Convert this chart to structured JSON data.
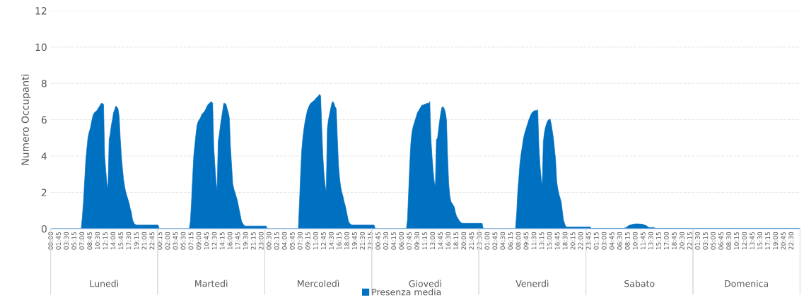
{
  "chart_data": {
    "type": "area",
    "ylabel": "Numero Occupanti",
    "legend": "bottom",
    "grid": "y",
    "ylim": [
      0,
      12
    ],
    "yticks": [
      0,
      2,
      4,
      6,
      8,
      10,
      12
    ],
    "annotations": [
      "Lunedì",
      "Martedì",
      "Mercoledì",
      "Giovedì",
      "Venerdì",
      "Sabato",
      "Domenica"
    ],
    "categories": [
      "00:00",
      null,
      null,
      null,
      null,
      null,
      null,
      "01:45",
      null,
      null,
      null,
      null,
      null,
      null,
      "03:30",
      null,
      null,
      null,
      null,
      null,
      null,
      "05:15",
      null,
      null,
      null,
      null,
      null,
      null,
      "07:00",
      null,
      null,
      null,
      null,
      null,
      null,
      "08:45",
      null,
      null,
      null,
      null,
      null,
      null,
      "10:30",
      null,
      null,
      null,
      null,
      null,
      null,
      "12:15",
      null,
      null,
      null,
      null,
      null,
      null,
      "14:00",
      null,
      null,
      null,
      null,
      null,
      null,
      "15:45",
      null,
      null,
      null,
      null,
      null,
      null,
      "17:30",
      null,
      null,
      null,
      null,
      null,
      null,
      "19:15",
      null,
      null,
      null,
      null,
      null,
      null,
      "21:00",
      null,
      null,
      null,
      null,
      null,
      null,
      "22:45",
      null,
      null,
      null,
      null,
      null,
      null,
      "00:15",
      null,
      null,
      null,
      null,
      null,
      null,
      "02:00",
      null,
      null,
      null,
      null,
      null,
      null,
      "03:45",
      null,
      null,
      null,
      null,
      null,
      null,
      "05:30",
      null,
      null,
      null,
      null,
      null,
      null,
      "07:15",
      null,
      null,
      null,
      null,
      null,
      null,
      "09:00",
      null,
      null,
      null,
      null,
      null,
      null,
      "10:45",
      null,
      null,
      null,
      null,
      null,
      null,
      "12:30",
      null,
      null,
      null,
      null,
      null,
      null,
      "14:15",
      null,
      null,
      null,
      null,
      null,
      null,
      "16:00",
      null,
      null,
      null,
      null,
      null,
      null,
      "17:45",
      null,
      null,
      null,
      null,
      null,
      null,
      "19:30",
      null,
      null,
      null,
      null,
      null,
      null,
      "21:15",
      null,
      null,
      null,
      null,
      null,
      null,
      "23:00",
      null,
      null,
      null,
      null,
      null,
      null,
      "00:30",
      null,
      null,
      null,
      null,
      null,
      null,
      "02:15",
      null,
      null,
      null,
      null,
      null,
      null,
      "04:00",
      null,
      null,
      null,
      null,
      null,
      null,
      "05:45",
      null,
      null,
      null,
      null,
      null,
      null,
      "07:30",
      null,
      null,
      null,
      null,
      null,
      null,
      "09:15",
      null,
      null,
      null,
      null,
      null,
      null,
      "11:00",
      null,
      null,
      null,
      null,
      null,
      null,
      "12:45",
      null,
      null,
      null,
      null,
      null,
      null,
      "14:30",
      null,
      null,
      null,
      null,
      null,
      null,
      "16:15",
      null,
      null,
      null,
      null,
      null,
      null,
      "18:00",
      null,
      null,
      null,
      null,
      null,
      null,
      "19:45",
      null,
      null,
      null,
      null,
      null,
      null,
      "21:30",
      null,
      null,
      null,
      null,
      null,
      null,
      "23:15",
      null,
      null,
      null,
      null,
      null,
      null,
      "00:45",
      null,
      null,
      null,
      null,
      null,
      null,
      "02:30",
      null,
      null,
      null,
      null,
      null,
      null,
      "04:15",
      null,
      null,
      null,
      null,
      null,
      null,
      "06:00",
      null,
      null,
      null,
      null,
      null,
      null,
      "07:45",
      null,
      null,
      null,
      null,
      null,
      null,
      "09:30",
      null,
      null,
      null,
      null,
      null,
      null,
      "11:15",
      null,
      null,
      null,
      null,
      null,
      null,
      "13:00",
      null,
      null,
      null,
      null,
      null,
      null,
      "14:45",
      null,
      null,
      null,
      null,
      null,
      null,
      "16:30",
      null,
      null,
      null,
      null,
      null,
      null,
      "18:15",
      null,
      null,
      null,
      null,
      null,
      null,
      "20:00",
      null,
      null,
      null,
      null,
      null,
      null,
      "21:45",
      null,
      null,
      null,
      null,
      null,
      null,
      "23:30",
      null,
      null,
      null,
      null,
      null,
      null,
      "01:00",
      null,
      null,
      null,
      null,
      null,
      null,
      "02:45",
      null,
      null,
      null,
      null,
      null,
      null,
      "04:30",
      null,
      null,
      null,
      null,
      null,
      null,
      "06:15",
      null,
      null,
      null,
      null,
      null,
      null,
      "08:00",
      null,
      null,
      null,
      null,
      null,
      null,
      "09:45",
      null,
      null,
      null,
      null,
      null,
      null,
      "11:30",
      null,
      null,
      null,
      null,
      null,
      null,
      "13:15",
      null,
      null,
      null,
      null,
      null,
      null,
      "15:00",
      null,
      null,
      null,
      null,
      null,
      null,
      "16:45",
      null,
      null,
      null,
      null,
      null,
      null,
      "18:30",
      null,
      null,
      null,
      null,
      null,
      null,
      "20:15",
      null,
      null,
      null,
      null,
      null,
      null,
      "22:00",
      null,
      null,
      null,
      null,
      null,
      null,
      "23:45",
      null,
      null,
      null,
      null,
      null,
      null,
      "01:15",
      null,
      null,
      null,
      null,
      null,
      null,
      "03:00",
      null,
      null,
      null,
      null,
      null,
      null,
      "04:45",
      null,
      null,
      null,
      null,
      null,
      null,
      "06:30",
      null,
      null,
      null,
      null,
      null,
      null,
      "08:15",
      null,
      null,
      null,
      null,
      null,
      null,
      "10:00",
      null,
      null,
      null,
      null,
      null,
      null,
      "11:45",
      null,
      null,
      null,
      null,
      null,
      null,
      "13:30",
      null,
      null,
      null,
      null,
      null,
      null,
      "15:15",
      null,
      null,
      null,
      null,
      null,
      null,
      "17:00",
      null,
      null,
      null,
      null,
      null,
      null,
      "18:45",
      null,
      null,
      null,
      null,
      null,
      null,
      "20:30",
      null,
      null,
      null,
      null,
      null,
      null,
      "22:15",
      null,
      null,
      null,
      null,
      null,
      null,
      "01:30",
      null,
      null,
      null,
      null,
      null,
      null,
      "03:15",
      null,
      null,
      null,
      null,
      null,
      null,
      "05:00",
      null,
      null,
      null,
      null,
      null,
      null,
      "06:45",
      null,
      null,
      null,
      null,
      null,
      null,
      "08:30",
      null,
      null,
      null,
      null,
      null,
      null,
      "10:15",
      null,
      null,
      null,
      null,
      null,
      null,
      "12:00",
      null,
      null,
      null,
      null,
      null,
      null,
      "13:45",
      null,
      null,
      null,
      null,
      null,
      null,
      "15:30",
      null,
      null,
      null,
      null,
      null,
      null,
      "17:15",
      null,
      null,
      null,
      null,
      null,
      null,
      "19:00",
      null,
      null,
      null,
      null,
      null,
      null,
      "20:45",
      null,
      null,
      null,
      null,
      null,
      null,
      "22:30",
      null,
      null,
      null,
      null,
      null,
      null,
      null
    ],
    "series": [
      {
        "name": "Presenza media",
        "color": "#0070c0",
        "values": [
          0,
          0,
          0,
          0,
          0,
          0,
          0,
          0,
          0,
          0,
          0,
          0,
          0,
          0,
          0,
          0,
          0,
          0,
          0,
          0,
          0,
          0,
          0,
          0,
          0,
          0,
          0,
          0,
          0.7,
          1.5,
          2.6,
          3.7,
          4.4,
          5.0,
          5.3,
          5.5,
          5.8,
          6.1,
          6.3,
          6.4,
          6.45,
          6.5,
          6.6,
          6.7,
          6.8,
          6.9,
          6.9,
          6.85,
          4.0,
          3.2,
          2.5,
          2.2,
          4.9,
          5.2,
          5.7,
          6.0,
          6.4,
          6.55,
          6.75,
          6.7,
          6.6,
          6.2,
          5.0,
          4.0,
          3.3,
          2.7,
          2.3,
          2.0,
          1.8,
          1.6,
          1.4,
          1.1,
          0.9,
          0.5,
          0.35,
          0.25,
          0.22,
          0.2,
          0.2,
          0.2,
          0.2,
          0.2,
          0.2,
          0.2,
          0.2,
          0.2,
          0.2,
          0.2,
          0.2,
          0.2,
          0.2,
          0.2,
          0.2,
          0.2,
          0.2,
          0.2,
          0.2,
          0,
          0,
          0,
          0,
          0,
          0,
          0,
          0,
          0,
          0,
          0,
          0,
          0,
          0,
          0,
          0,
          0,
          0,
          0,
          0,
          0,
          0,
          0,
          0,
          0,
          0,
          0,
          0,
          0.4,
          1.5,
          2.8,
          4.0,
          4.6,
          5.2,
          5.7,
          5.9,
          6.0,
          6.1,
          6.25,
          6.35,
          6.4,
          6.5,
          6.6,
          6.75,
          6.85,
          6.9,
          6.95,
          7.0,
          6.9,
          4.5,
          3.5,
          2.6,
          2.1,
          4.8,
          5.2,
          5.7,
          6.1,
          6.5,
          6.9,
          6.9,
          6.85,
          6.6,
          6.4,
          6.1,
          4.5,
          3.5,
          2.5,
          2.2,
          2.0,
          1.8,
          1.6,
          1.3,
          1.0,
          0.7,
          0.4,
          0.3,
          0.2,
          0.15,
          0.15,
          0.15,
          0.15,
          0.15,
          0.15,
          0.15,
          0.15,
          0.15,
          0.15,
          0.15,
          0.15,
          0.15,
          0.15,
          0.15,
          0.15,
          0.15,
          0.15,
          0.15,
          0.15,
          0,
          0,
          0,
          0,
          0,
          0,
          0,
          0,
          0,
          0,
          0,
          0,
          0,
          0,
          0,
          0,
          0,
          0,
          0,
          0,
          0,
          0,
          0,
          0,
          0,
          0,
          0,
          0,
          0,
          1.5,
          3.0,
          4.3,
          5.0,
          5.5,
          5.9,
          6.2,
          6.5,
          6.65,
          6.8,
          6.9,
          6.95,
          7.0,
          7.05,
          7.1,
          7.2,
          7.25,
          7.3,
          7.4,
          7.3,
          5.5,
          4.0,
          3.0,
          2.4,
          2.0,
          5.5,
          6.0,
          6.3,
          6.6,
          6.9,
          7.0,
          6.9,
          6.7,
          6.6,
          5.0,
          3.5,
          2.8,
          2.3,
          2.0,
          1.8,
          1.5,
          1.3,
          1.0,
          0.7,
          0.4,
          0.3,
          0.25,
          0.2,
          0.2,
          0.2,
          0.2,
          0.2,
          0.2,
          0.2,
          0.2,
          0.2,
          0.2,
          0.2,
          0.2,
          0.2,
          0.2,
          0.2,
          0.2,
          0.2,
          0.2,
          0.2,
          0.2,
          0.2,
          0,
          0,
          0,
          0,
          0,
          0,
          0,
          0,
          0,
          0,
          0,
          0,
          0,
          0,
          0,
          0,
          0,
          0,
          0,
          0,
          0,
          0,
          0,
          0,
          0,
          0,
          0,
          0,
          0,
          0.5,
          2.0,
          3.5,
          4.7,
          5.3,
          5.6,
          5.8,
          6.0,
          6.2,
          6.4,
          6.5,
          6.6,
          6.7,
          6.8,
          6.8,
          6.85,
          6.85,
          6.9,
          6.9,
          6.9,
          7.0,
          5.0,
          4.0,
          3.2,
          2.6,
          2.3,
          4.9,
          5.0,
          5.5,
          6.0,
          6.4,
          6.7,
          6.7,
          6.6,
          6.4,
          6.0,
          4.0,
          2.5,
          1.8,
          1.5,
          1.4,
          1.3,
          1.2,
          0.9,
          0.7,
          0.6,
          0.5,
          0.4,
          0.35,
          0.3,
          0.3,
          0.3,
          0.3,
          0.3,
          0.3,
          0.3,
          0.3,
          0.3,
          0.3,
          0.3,
          0.3,
          0.3,
          0.3,
          0.3,
          0.3,
          0.3,
          0.3,
          0.3,
          0,
          0,
          0,
          0,
          0,
          0,
          0,
          0,
          0,
          0,
          0,
          0,
          0,
          0,
          0,
          0,
          0,
          0,
          0,
          0,
          0,
          0,
          0,
          0,
          0,
          0,
          0,
          0,
          0,
          0,
          0.8,
          2.0,
          2.8,
          3.6,
          4.1,
          4.5,
          4.9,
          5.2,
          5.4,
          5.6,
          5.8,
          6.0,
          6.15,
          6.3,
          6.4,
          6.45,
          6.5,
          6.5,
          6.5,
          6.55,
          4.5,
          3.5,
          2.8,
          2.3,
          4.8,
          5.3,
          5.6,
          5.8,
          5.95,
          6.0,
          6.05,
          5.8,
          5.4,
          5.0,
          4.4,
          3.8,
          2.6,
          2.2,
          1.9,
          1.7,
          1.5,
          1.0,
          0.5,
          0.3,
          0.15,
          0.1,
          0.1,
          0.1,
          0.1,
          0.1,
          0.1,
          0.1,
          0.1,
          0.1,
          0.1,
          0.1,
          0.1,
          0.1,
          0.1,
          0.1,
          0.1,
          0.1,
          0.1,
          0.1,
          0.1,
          0.1,
          0.1,
          0.02,
          0.02,
          0.02,
          0.02,
          0.02,
          0.02,
          0.02,
          0.02,
          0.02,
          0.02,
          0.02,
          0.02,
          0.02,
          0.02,
          0.02,
          0.02,
          0.02,
          0.02,
          0.02,
          0.02,
          0.02,
          0.02,
          0.02,
          0.02,
          0.02,
          0.02,
          0.02,
          0.02,
          0.02,
          0.02,
          0.04,
          0.05,
          0.1,
          0.15,
          0.18,
          0.2,
          0.22,
          0.24,
          0.25,
          0.26,
          0.27,
          0.27,
          0.27,
          0.26,
          0.26,
          0.25,
          0.25,
          0.22,
          0.2,
          0.18,
          0.15,
          0.1,
          0.07,
          0.07,
          0.07,
          0.07,
          0.07,
          0.05,
          0.02,
          0.02,
          0.02,
          0.02,
          0.02,
          0.02,
          0.02,
          0.02,
          0.02,
          0.02,
          0.02,
          0.02,
          0.02,
          0.02,
          0.02,
          0.02,
          0.02,
          0.02,
          0.02,
          0.02,
          0.02,
          0.02,
          0.02,
          0.02,
          0.02,
          0.02,
          0.02,
          0.02,
          0.02,
          0.02,
          0.02,
          0.02,
          0.02,
          0.02,
          0.02,
          0.02,
          0.02,
          0.02,
          0.02,
          0.02,
          0.02,
          0.02,
          0.02,
          0.02,
          0.02,
          0.02,
          0.02,
          0.02,
          0.02,
          0.02,
          0.02,
          0.02,
          0.02,
          0.02,
          0.02,
          0.02,
          0.02,
          0.02,
          0.02,
          0.02,
          0.02,
          0.02,
          0.02,
          0.02,
          0.02,
          0.02,
          0.02,
          0.02,
          0.02,
          0.02,
          0.02,
          0.02,
          0.02,
          0.02,
          0.02,
          0.02,
          0.02,
          0.02,
          0.02,
          0.02,
          0.02,
          0.02,
          0.02,
          0.02,
          0.02,
          0.02,
          0.02,
          0.02,
          0.02,
          0.02,
          0.02,
          0.02,
          0.02,
          0.02,
          0.02,
          0.02,
          0.02,
          0.02,
          0.02,
          0.02,
          0.02,
          0.02,
          0.02,
          0.02,
          0.02,
          0.02,
          0.02,
          0.02,
          0.02,
          0.02,
          0.02,
          0.02,
          0.02,
          0.02,
          0.02,
          0.02,
          0.02,
          0.02,
          0.02,
          0.02,
          0.02,
          0.02,
          0.02,
          0.02,
          0.02,
          0.02,
          0.02,
          0.02,
          0.02,
          0.02
        ]
      }
    ]
  }
}
